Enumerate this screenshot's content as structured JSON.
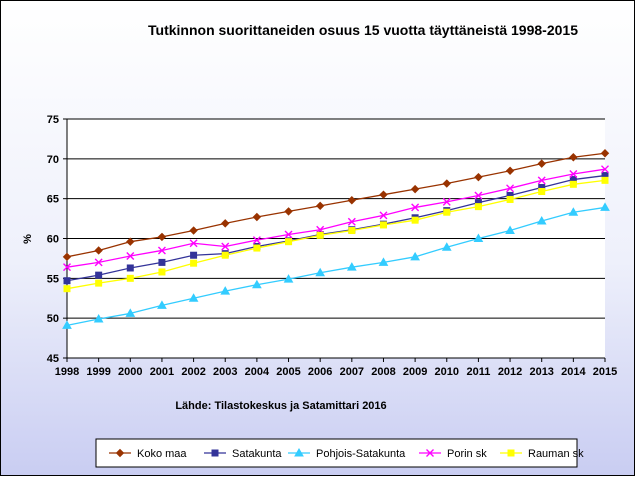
{
  "chart_data": {
    "type": "line",
    "title": "Tutkinnon suorittaneiden osuus 15 vuotta täyttäneistä 1998-2015",
    "ylabel": "%",
    "xlabel": "",
    "source": "Lähde: Tilastokeskus ja Satamittari 2016",
    "ylim": [
      45,
      75
    ],
    "yticks": [
      45,
      50,
      55,
      60,
      65,
      70,
      75
    ],
    "grid": true,
    "legend_position": "bottom",
    "x": [
      "1998",
      "1999",
      "2000",
      "2001",
      "2002",
      "2003",
      "2004",
      "2005",
      "2006",
      "2007",
      "2008",
      "2009",
      "2010",
      "2011",
      "2012",
      "2013",
      "2014",
      "2015"
    ],
    "series": [
      {
        "name": "Koko maa",
        "color": "#993300",
        "marker": "diamond",
        "values": [
          57.7,
          58.5,
          59.6,
          60.2,
          61.0,
          61.9,
          62.7,
          63.4,
          64.1,
          64.8,
          65.5,
          66.2,
          66.9,
          67.7,
          68.5,
          69.4,
          70.2,
          70.7
        ]
      },
      {
        "name": "Satakunta",
        "color": "#333399",
        "marker": "square",
        "values": [
          54.7,
          55.4,
          56.3,
          57.0,
          57.9,
          58.1,
          59.0,
          59.7,
          60.5,
          61.1,
          61.8,
          62.6,
          63.5,
          64.5,
          65.4,
          66.4,
          67.4,
          67.9
        ]
      },
      {
        "name": "Pohjois-Satakunta",
        "color": "#33ccff",
        "marker": "triangle",
        "values": [
          49.1,
          49.9,
          50.6,
          51.6,
          52.5,
          53.4,
          54.2,
          54.9,
          55.7,
          56.4,
          57.0,
          57.7,
          58.9,
          60.0,
          61.0,
          62.2,
          63.3,
          63.9
        ]
      },
      {
        "name": "Porin sk",
        "color": "#ff00ff",
        "marker": "x",
        "values": [
          56.4,
          57.0,
          57.8,
          58.5,
          59.4,
          59.0,
          59.8,
          60.5,
          61.1,
          62.1,
          62.9,
          63.9,
          64.6,
          65.4,
          66.3,
          67.3,
          68.1,
          68.7
        ]
      },
      {
        "name": "Rauman sk",
        "color": "#ffff00",
        "marker": "square",
        "values": [
          53.7,
          54.4,
          55.0,
          55.8,
          56.9,
          57.9,
          58.8,
          59.6,
          60.4,
          61.0,
          61.7,
          62.3,
          63.3,
          64.0,
          64.9,
          65.9,
          66.8,
          67.3
        ]
      }
    ]
  }
}
